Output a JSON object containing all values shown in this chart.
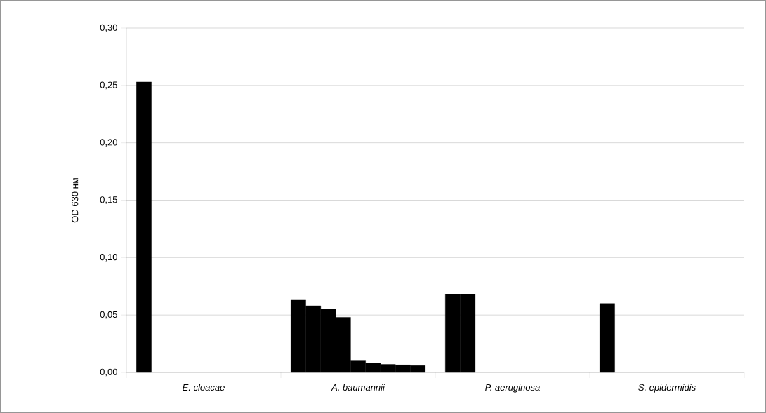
{
  "chart_data": {
    "type": "bar",
    "ylabel": "OD 630 нм",
    "categories": [
      "E. cloacae",
      "A. baumannii",
      "P. aeruginosa",
      "S. epidermidis"
    ],
    "series": [
      {
        "color": "#000000",
        "values": [
          0.253,
          0.063,
          0.068,
          0.06
        ]
      },
      {
        "color": "#000000",
        "values": [
          null,
          0.058,
          0.068,
          null
        ]
      },
      {
        "color": "#000000",
        "values": [
          null,
          0.055,
          null,
          null
        ]
      },
      {
        "color": "#000000",
        "values": [
          null,
          0.048,
          null,
          null
        ]
      },
      {
        "color": "#000000",
        "values": [
          null,
          0.01,
          null,
          null
        ]
      },
      {
        "color": "#000000",
        "values": [
          null,
          0.008,
          null,
          null
        ]
      },
      {
        "color": "#000000",
        "values": [
          null,
          0.007,
          null,
          null
        ]
      },
      {
        "color": "#000000",
        "values": [
          null,
          0.0065,
          null,
          null
        ]
      },
      {
        "color": "#000000",
        "values": [
          null,
          0.006,
          null,
          null
        ]
      }
    ],
    "ylim": [
      0,
      0.3
    ],
    "yticks": [
      {
        "value": 0,
        "label": "0,00"
      },
      {
        "value": 0.05,
        "label": "0,05"
      },
      {
        "value": 0.1,
        "label": "0,10"
      },
      {
        "value": 0.15,
        "label": "0,15"
      },
      {
        "value": 0.2,
        "label": "0,20"
      },
      {
        "value": 0.25,
        "label": "0,25"
      },
      {
        "value": 0.3,
        "label": "0,30"
      }
    ],
    "grid": "y"
  }
}
